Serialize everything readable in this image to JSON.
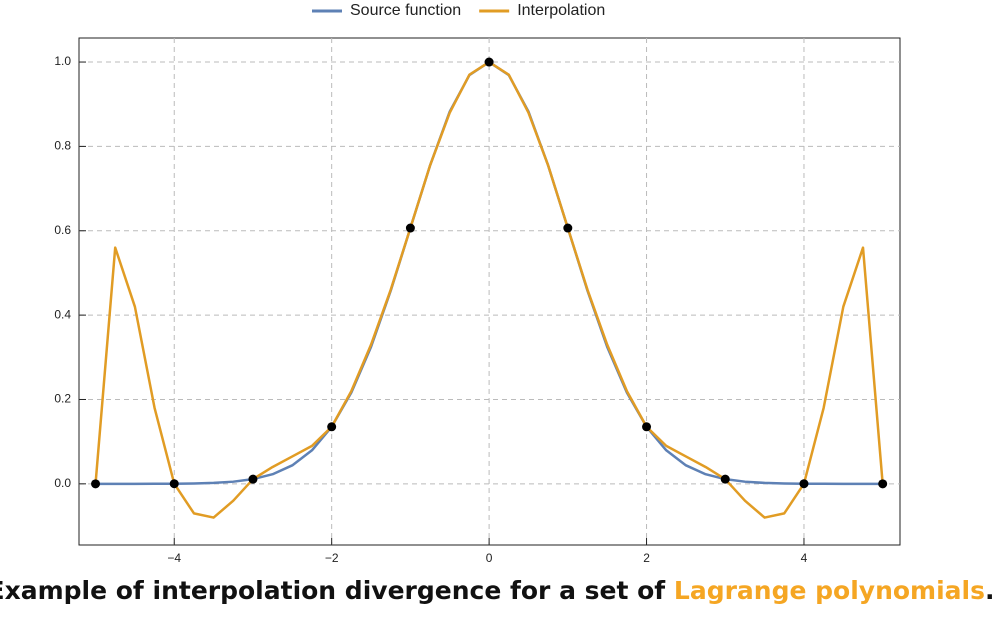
{
  "chart_data": {
    "type": "line",
    "caption": {
      "prefix": "Example of interpolation divergence for a set of ",
      "highlight": "Lagrange polynomials",
      "suffix": "."
    },
    "x": [
      -5,
      -4.75,
      -4.5,
      -4.25,
      -4,
      -3.75,
      -3.5,
      -3.25,
      -3,
      -2.75,
      -2.5,
      -2.25,
      -2,
      -1.75,
      -1.5,
      -1.25,
      -1,
      -0.75,
      -0.5,
      -0.25,
      0,
      0.25,
      0.5,
      0.75,
      1,
      1.25,
      1.5,
      1.75,
      2,
      2.25,
      2.5,
      2.75,
      3,
      3.25,
      3.5,
      3.75,
      4,
      4.25,
      4.5,
      4.75,
      5
    ],
    "series": [
      {
        "name": "Source function",
        "color": "#5e81b5",
        "values": [
          0,
          0,
          0,
          0.0001,
          0.0003,
          0.0009,
          0.0022,
          0.0051,
          0.0111,
          0.0228,
          0.0439,
          0.0796,
          0.1353,
          0.2165,
          0.3247,
          0.4578,
          0.6065,
          0.7548,
          0.8825,
          0.9692,
          1,
          0.9692,
          0.8825,
          0.7548,
          0.6065,
          0.4578,
          0.3247,
          0.2165,
          0.1353,
          0.0796,
          0.0439,
          0.0228,
          0.0111,
          0.0051,
          0.0022,
          0.0009,
          0.0003,
          0.0001,
          0,
          0,
          0
        ]
      },
      {
        "name": "Interpolation",
        "color": "#e19c24",
        "values": [
          0,
          0.56,
          0.42,
          0.18,
          0.0003,
          -0.07,
          -0.08,
          -0.04,
          0.0111,
          0.04,
          0.065,
          0.09,
          0.1353,
          0.22,
          0.33,
          0.46,
          0.6065,
          0.755,
          0.88,
          0.97,
          1,
          0.97,
          0.88,
          0.755,
          0.6065,
          0.46,
          0.33,
          0.22,
          0.1353,
          0.09,
          0.065,
          0.04,
          0.0111,
          -0.04,
          -0.08,
          -0.07,
          0.0003,
          0.18,
          0.42,
          0.56,
          0
        ]
      }
    ],
    "points": {
      "color": "#000000",
      "x": [
        -5,
        -4,
        -3,
        -2,
        -1,
        0,
        1,
        2,
        3,
        4,
        5
      ],
      "values": [
        0,
        0.0003,
        0.0111,
        0.1353,
        0.6065,
        1,
        0.6065,
        0.1353,
        0.0111,
        0.0003,
        0
      ]
    },
    "xlim": [
      -5.21,
      5.22
    ],
    "ylim": [
      -0.145,
      1.057
    ],
    "xticks": [
      {
        "value": -4,
        "label": "−4"
      },
      {
        "value": -2,
        "label": "−2"
      },
      0,
      2,
      4
    ],
    "yticks": [
      {
        "value": 0,
        "label": "0.0"
      },
      0.2,
      0.4,
      0.6,
      0.8,
      {
        "value": 1,
        "label": "1.0"
      }
    ],
    "grid": true,
    "legend": "top"
  }
}
